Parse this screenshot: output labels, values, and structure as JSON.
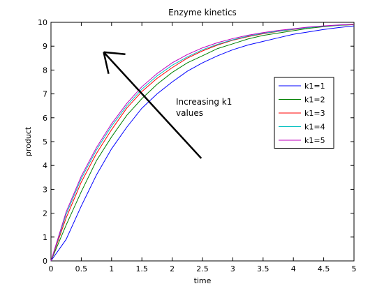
{
  "chart_data": {
    "type": "line",
    "title": "Enzyme kinetics",
    "xlabel": "time",
    "ylabel": "product",
    "xlim": [
      0,
      5
    ],
    "ylim": [
      0,
      10
    ],
    "xticks": [
      0,
      0.5,
      1,
      1.5,
      2,
      2.5,
      3,
      3.5,
      4,
      4.5,
      5
    ],
    "xtick_labels": [
      "0",
      "0.5",
      "1",
      "1.5",
      "2",
      "2.5",
      "3",
      "3.5",
      "4",
      "4.5",
      "5"
    ],
    "yticks": [
      0,
      1,
      2,
      3,
      4,
      5,
      6,
      7,
      8,
      9,
      10
    ],
    "ytick_labels": [
      "0",
      "1",
      "2",
      "3",
      "4",
      "5",
      "6",
      "7",
      "8",
      "9",
      "10"
    ],
    "grid": false,
    "legend_position": "right",
    "x": [
      0,
      0.25,
      0.5,
      0.75,
      1,
      1.25,
      1.5,
      1.75,
      2,
      2.25,
      2.5,
      2.75,
      3,
      3.25,
      3.5,
      3.75,
      4,
      4.25,
      4.5,
      4.75,
      5
    ],
    "series": [
      {
        "name": "k1=1",
        "color": "#0000ff",
        "values": [
          0,
          0.9,
          2.3,
          3.6,
          4.7,
          5.6,
          6.4,
          7.0,
          7.5,
          7.95,
          8.3,
          8.6,
          8.85,
          9.05,
          9.2,
          9.35,
          9.5,
          9.6,
          9.7,
          9.78,
          9.85
        ]
      },
      {
        "name": "k1=2",
        "color": "#008000",
        "values": [
          0,
          1.5,
          2.9,
          4.2,
          5.2,
          6.1,
          6.8,
          7.4,
          7.9,
          8.3,
          8.6,
          8.9,
          9.1,
          9.3,
          9.45,
          9.55,
          9.65,
          9.75,
          9.82,
          9.87,
          9.9
        ]
      },
      {
        "name": "k1=3",
        "color": "#ff0000",
        "values": [
          0,
          1.8,
          3.3,
          4.5,
          5.5,
          6.4,
          7.1,
          7.65,
          8.1,
          8.5,
          8.8,
          9.05,
          9.25,
          9.4,
          9.52,
          9.62,
          9.7,
          9.78,
          9.84,
          9.88,
          9.91
        ]
      },
      {
        "name": "k1=4",
        "color": "#00bfbf",
        "values": [
          0,
          1.95,
          3.45,
          4.65,
          5.65,
          6.5,
          7.2,
          7.75,
          8.2,
          8.55,
          8.85,
          9.08,
          9.27,
          9.42,
          9.54,
          9.63,
          9.71,
          9.78,
          9.84,
          9.88,
          9.92
        ]
      },
      {
        "name": "k1=5",
        "color": "#bf00bf",
        "values": [
          0,
          2.05,
          3.55,
          4.75,
          5.75,
          6.6,
          7.3,
          7.85,
          8.3,
          8.65,
          8.93,
          9.15,
          9.32,
          9.46,
          9.57,
          9.66,
          9.73,
          9.8,
          9.85,
          9.89,
          9.92
        ]
      }
    ],
    "annotation": {
      "lines": [
        "Increasing k1",
        "values"
      ],
      "arrow_from": [
        2.48,
        4.3
      ],
      "arrow_to": [
        0.87,
        8.75
      ]
    }
  }
}
